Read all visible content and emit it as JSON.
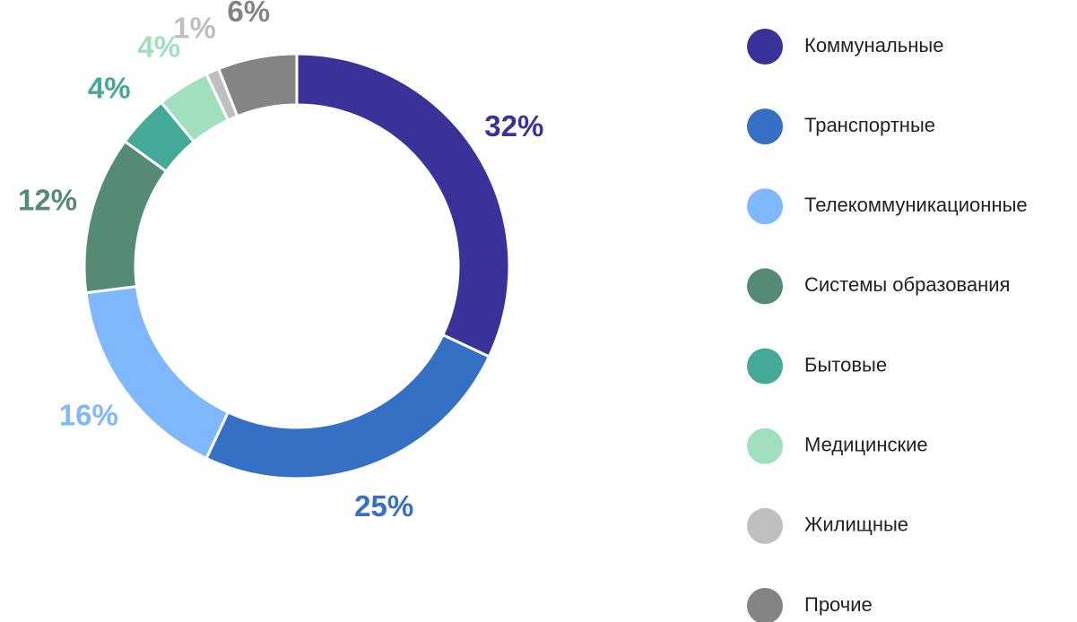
{
  "chart_data": {
    "type": "donut",
    "categories": [
      "Коммунальные",
      "Транспортные",
      "Телекоммуникационные",
      "Системы образования",
      "Бытовые",
      "Медицинские",
      "Жилищные",
      "Прочие"
    ],
    "values": [
      32,
      25,
      16,
      12,
      4,
      4,
      1,
      6
    ],
    "value_labels": [
      "32%",
      "25%",
      "16%",
      "12%",
      "4%",
      "4%",
      "1%",
      "6%"
    ],
    "colors": [
      "#383299",
      "#3670c4",
      "#7fb8fb",
      "#558b74",
      "#44a996",
      "#a2dfbf",
      "#bfbfbf",
      "#848484"
    ],
    "legend": "right"
  }
}
